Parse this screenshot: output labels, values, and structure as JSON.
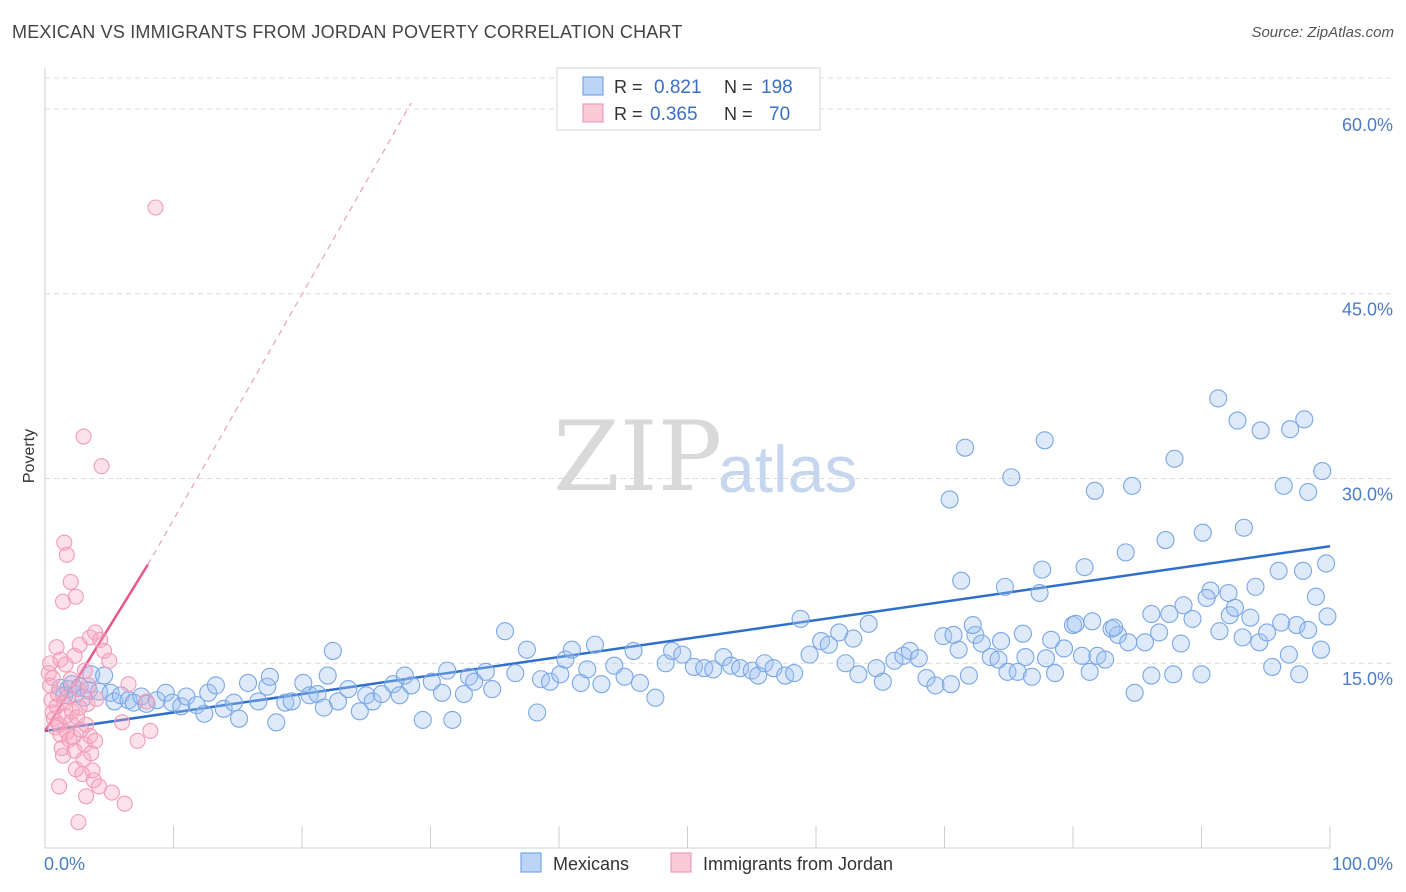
{
  "title": "MEXICAN VS IMMIGRANTS FROM JORDAN POVERTY CORRELATION CHART",
  "source": "Source: ZipAtlas.com",
  "watermark": {
    "zip": "ZIP",
    "atlas": "atlas"
  },
  "colors": {
    "blue": "#7aa7e6",
    "blue_line": "#2f6fcb",
    "pink": "#f29bb6",
    "pink_line": "#e8578a",
    "axis_text": "#4a7cc7"
  },
  "legend_top": {
    "rows": [
      {
        "r_label": "R =",
        "r_value": "0.821",
        "n_label": "N =",
        "n_value": "198"
      },
      {
        "r_label": "R =",
        "r_value": "0.365",
        "n_label": "N =",
        "n_value": "70"
      }
    ]
  },
  "legend_bottom": [
    "Mexicans",
    "Immigrants from Jordan"
  ],
  "chart_data": {
    "type": "scatter",
    "ylabel": "Poverty",
    "xlim": [
      0,
      100
    ],
    "ylim": [
      0,
      63
    ],
    "yticks": [
      {
        "v": 15,
        "label": "15.0%"
      },
      {
        "v": 30,
        "label": "30.0%"
      },
      {
        "v": 45,
        "label": "45.0%"
      },
      {
        "v": 60,
        "label": "60.0%"
      }
    ],
    "xtick_labels": [
      {
        "v": 0,
        "label": "0.0%"
      },
      {
        "v": 100,
        "label": "100.0%"
      }
    ],
    "x_minor_ticks": [
      0,
      10,
      20,
      30,
      40,
      50,
      60,
      70,
      80,
      90,
      100
    ],
    "grid": true,
    "series": [
      {
        "name": "Mexicans",
        "color": "#7aa7e6",
        "trend": {
          "x0": 0,
          "y0": 9.5,
          "x1": 100,
          "y1": 24.5
        },
        "points": [
          [
            1.2,
            13.0
          ],
          [
            1.5,
            12.4
          ],
          [
            1.8,
            12.9
          ],
          [
            2.1,
            13.3
          ],
          [
            2.4,
            12.5
          ],
          [
            2.7,
            13.1
          ],
          [
            3.0,
            12.2
          ],
          [
            3.4,
            12.8
          ],
          [
            3.6,
            14.1
          ],
          [
            4.2,
            12.7
          ],
          [
            4.6,
            14.0
          ],
          [
            5.1,
            12.6
          ],
          [
            5.4,
            11.9
          ],
          [
            5.9,
            12.4
          ],
          [
            6.5,
            12.0
          ],
          [
            6.9,
            11.8
          ],
          [
            7.5,
            12.3
          ],
          [
            7.9,
            11.7
          ],
          [
            8.7,
            12.0
          ],
          [
            9.4,
            12.6
          ],
          [
            9.9,
            11.8
          ],
          [
            10.6,
            11.5
          ],
          [
            11.0,
            12.3
          ],
          [
            11.8,
            11.6
          ],
          [
            12.4,
            10.9
          ],
          [
            12.7,
            12.6
          ],
          [
            13.3,
            13.2
          ],
          [
            13.9,
            11.3
          ],
          [
            14.7,
            11.8
          ],
          [
            15.1,
            10.5
          ],
          [
            15.8,
            13.4
          ],
          [
            16.6,
            11.9
          ],
          [
            17.3,
            13.1
          ],
          [
            17.5,
            13.9
          ],
          [
            18.0,
            10.2
          ],
          [
            18.7,
            11.8
          ],
          [
            19.2,
            11.9
          ],
          [
            20.1,
            13.4
          ],
          [
            20.6,
            12.4
          ],
          [
            21.2,
            12.5
          ],
          [
            21.7,
            11.4
          ],
          [
            22.0,
            14.0
          ],
          [
            22.4,
            16.0
          ],
          [
            22.8,
            11.9
          ],
          [
            23.6,
            12.9
          ],
          [
            24.5,
            11.1
          ],
          [
            25.0,
            12.4
          ],
          [
            25.5,
            11.9
          ],
          [
            26.2,
            12.5
          ],
          [
            27.1,
            13.3
          ],
          [
            27.6,
            12.4
          ],
          [
            28.0,
            14.0
          ],
          [
            28.5,
            13.2
          ],
          [
            29.4,
            10.4
          ],
          [
            30.1,
            13.5
          ],
          [
            30.9,
            12.6
          ],
          [
            31.3,
            14.4
          ],
          [
            31.7,
            10.4
          ],
          [
            32.6,
            12.5
          ],
          [
            33.0,
            13.9
          ],
          [
            33.4,
            13.5
          ],
          [
            34.3,
            14.3
          ],
          [
            34.8,
            12.9
          ],
          [
            35.8,
            17.6
          ],
          [
            36.6,
            14.2
          ],
          [
            37.5,
            16.1
          ],
          [
            38.3,
            11.0
          ],
          [
            38.6,
            13.7
          ],
          [
            39.3,
            13.5
          ],
          [
            40.1,
            14.1
          ],
          [
            40.5,
            15.3
          ],
          [
            41.0,
            16.1
          ],
          [
            41.7,
            13.4
          ],
          [
            42.2,
            14.5
          ],
          [
            42.8,
            16.5
          ],
          [
            43.3,
            13.3
          ],
          [
            44.3,
            14.8
          ],
          [
            45.1,
            13.9
          ],
          [
            45.8,
            16.0
          ],
          [
            46.3,
            13.4
          ],
          [
            47.5,
            12.2
          ],
          [
            48.3,
            15.0
          ],
          [
            48.8,
            16.0
          ],
          [
            49.6,
            15.7
          ],
          [
            50.5,
            14.7
          ],
          [
            51.3,
            14.6
          ],
          [
            52.0,
            14.5
          ],
          [
            52.8,
            15.5
          ],
          [
            53.4,
            14.8
          ],
          [
            54.1,
            14.6
          ],
          [
            55.0,
            14.4
          ],
          [
            55.5,
            14.0
          ],
          [
            56.0,
            15.0
          ],
          [
            56.7,
            14.6
          ],
          [
            57.6,
            14.0
          ],
          [
            58.3,
            14.2
          ],
          [
            58.8,
            18.6
          ],
          [
            59.5,
            15.7
          ],
          [
            60.4,
            16.8
          ],
          [
            61.0,
            16.5
          ],
          [
            61.8,
            17.5
          ],
          [
            62.3,
            15.0
          ],
          [
            62.9,
            17.0
          ],
          [
            63.3,
            14.1
          ],
          [
            64.1,
            18.2
          ],
          [
            64.7,
            14.6
          ],
          [
            65.2,
            13.5
          ],
          [
            66.1,
            15.2
          ],
          [
            66.8,
            15.6
          ],
          [
            67.3,
            16.0
          ],
          [
            68.0,
            15.4
          ],
          [
            68.6,
            13.8
          ],
          [
            69.3,
            13.2
          ],
          [
            69.9,
            17.2
          ],
          [
            70.5,
            13.3
          ],
          [
            71.1,
            16.1
          ],
          [
            71.9,
            14.0
          ],
          [
            72.4,
            17.3
          ],
          [
            72.9,
            16.6
          ],
          [
            73.6,
            15.5
          ],
          [
            74.2,
            15.3
          ],
          [
            74.9,
            14.3
          ],
          [
            75.7,
            14.3
          ],
          [
            76.3,
            15.5
          ],
          [
            76.8,
            13.9
          ],
          [
            77.4,
            20.7
          ],
          [
            77.9,
            15.4
          ],
          [
            78.6,
            14.2
          ],
          [
            79.3,
            16.2
          ],
          [
            80.0,
            18.1
          ],
          [
            80.7,
            15.6
          ],
          [
            81.3,
            14.3
          ],
          [
            81.9,
            15.6
          ],
          [
            82.5,
            15.3
          ],
          [
            83.0,
            17.8
          ],
          [
            83.5,
            17.3
          ],
          [
            84.3,
            16.7
          ],
          [
            84.8,
            12.6
          ],
          [
            85.6,
            16.7
          ],
          [
            86.1,
            14.0
          ],
          [
            86.7,
            17.5
          ],
          [
            87.5,
            19.0
          ],
          [
            87.8,
            14.1
          ],
          [
            88.4,
            16.6
          ],
          [
            89.3,
            18.6
          ],
          [
            90.0,
            14.1
          ],
          [
            90.7,
            20.9
          ],
          [
            91.4,
            17.6
          ],
          [
            92.2,
            18.9
          ],
          [
            92.6,
            19.5
          ],
          [
            93.2,
            17.1
          ],
          [
            93.8,
            18.7
          ],
          [
            94.5,
            16.7
          ],
          [
            95.1,
            17.5
          ],
          [
            95.5,
            14.7
          ],
          [
            96.2,
            18.3
          ],
          [
            96.8,
            15.7
          ],
          [
            97.4,
            18.1
          ],
          [
            97.6,
            14.1
          ],
          [
            98.3,
            17.7
          ],
          [
            98.9,
            20.4
          ],
          [
            99.3,
            16.1
          ],
          [
            99.8,
            18.8
          ],
          [
            70.7,
            17.3
          ],
          [
            72.2,
            18.1
          ],
          [
            74.4,
            16.8
          ],
          [
            76.1,
            17.4
          ],
          [
            78.3,
            16.9
          ],
          [
            80.2,
            18.2
          ],
          [
            81.5,
            18.4
          ],
          [
            83.2,
            17.9
          ],
          [
            86.1,
            19.0
          ],
          [
            88.6,
            19.7
          ],
          [
            90.4,
            20.3
          ],
          [
            92.1,
            20.7
          ],
          [
            94.2,
            21.2
          ],
          [
            96.0,
            22.5
          ],
          [
            97.9,
            22.5
          ],
          [
            99.7,
            23.1
          ],
          [
            71.3,
            21.7
          ],
          [
            74.7,
            21.2
          ],
          [
            77.6,
            22.6
          ],
          [
            80.9,
            22.8
          ],
          [
            84.1,
            24.0
          ],
          [
            87.2,
            25.0
          ],
          [
            90.1,
            25.6
          ],
          [
            93.3,
            26.0
          ],
          [
            96.4,
            29.4
          ],
          [
            98.3,
            28.9
          ],
          [
            99.4,
            30.6
          ],
          [
            71.6,
            32.5
          ],
          [
            75.2,
            30.1
          ],
          [
            77.8,
            33.1
          ],
          [
            81.7,
            29.0
          ],
          [
            84.6,
            29.4
          ],
          [
            87.9,
            31.6
          ],
          [
            91.3,
            36.5
          ],
          [
            92.8,
            34.7
          ],
          [
            94.6,
            33.9
          ],
          [
            96.9,
            34.0
          ],
          [
            98.0,
            34.8
          ],
          [
            70.4,
            28.3
          ]
        ]
      },
      {
        "name": "Immigrants from Jordan",
        "color": "#f29bb6",
        "trend": {
          "x0": 0,
          "y0": 9.5,
          "x1": 8,
          "y1": 23.0,
          "dash_x1": 28.5,
          "dash_y1": 60.5
        },
        "points": [
          [
            0.3,
            14.2
          ],
          [
            0.4,
            13.2
          ],
          [
            0.5,
            12.0
          ],
          [
            0.6,
            11.0
          ],
          [
            0.7,
            10.5
          ],
          [
            0.8,
            9.8
          ],
          [
            0.9,
            11.5
          ],
          [
            1.0,
            12.5
          ],
          [
            1.1,
            10.0
          ],
          [
            1.2,
            9.2
          ],
          [
            1.3,
            8.1
          ],
          [
            1.4,
            7.5
          ],
          [
            1.5,
            11.8
          ],
          [
            1.6,
            10.7
          ],
          [
            1.7,
            9.4
          ],
          [
            1.8,
            12.3
          ],
          [
            1.9,
            8.8
          ],
          [
            2.0,
            10.2
          ],
          [
            2.1,
            11.1
          ],
          [
            2.2,
            9.0
          ],
          [
            2.3,
            7.9
          ],
          [
            2.4,
            6.4
          ],
          [
            2.5,
            10.6
          ],
          [
            2.6,
            12.9
          ],
          [
            2.7,
            11.4
          ],
          [
            2.8,
            9.6
          ],
          [
            2.9,
            6.0
          ],
          [
            3.0,
            7.2
          ],
          [
            3.1,
            8.4
          ],
          [
            3.2,
            10.0
          ],
          [
            3.3,
            11.7
          ],
          [
            3.4,
            13.2
          ],
          [
            3.5,
            9.1
          ],
          [
            3.6,
            7.7
          ],
          [
            3.7,
            6.3
          ],
          [
            3.8,
            5.5
          ],
          [
            3.9,
            8.7
          ],
          [
            0.4,
            15.0
          ],
          [
            0.6,
            13.8
          ],
          [
            0.9,
            16.3
          ],
          [
            1.2,
            15.3
          ],
          [
            1.6,
            14.9
          ],
          [
            2.0,
            13.7
          ],
          [
            2.3,
            15.6
          ],
          [
            2.7,
            16.5
          ],
          [
            3.1,
            14.4
          ],
          [
            3.5,
            17.1
          ],
          [
            3.9,
            17.5
          ],
          [
            4.3,
            16.9
          ],
          [
            4.6,
            16.0
          ],
          [
            5.0,
            15.2
          ],
          [
            1.4,
            20.0
          ],
          [
            2.0,
            21.6
          ],
          [
            2.4,
            20.4
          ],
          [
            1.5,
            24.8
          ],
          [
            1.7,
            23.8
          ],
          [
            3.0,
            33.4
          ],
          [
            4.4,
            31.0
          ],
          [
            6.0,
            10.2
          ],
          [
            7.2,
            8.7
          ],
          [
            8.2,
            9.5
          ],
          [
            3.2,
            4.2
          ],
          [
            4.2,
            5.0
          ],
          [
            5.2,
            4.5
          ],
          [
            6.2,
            3.6
          ],
          [
            2.6,
            2.1
          ],
          [
            1.1,
            5.0
          ],
          [
            4.0,
            12.1
          ],
          [
            6.5,
            13.3
          ],
          [
            7.9,
            11.9
          ],
          [
            8.6,
            52.0
          ]
        ]
      }
    ]
  }
}
